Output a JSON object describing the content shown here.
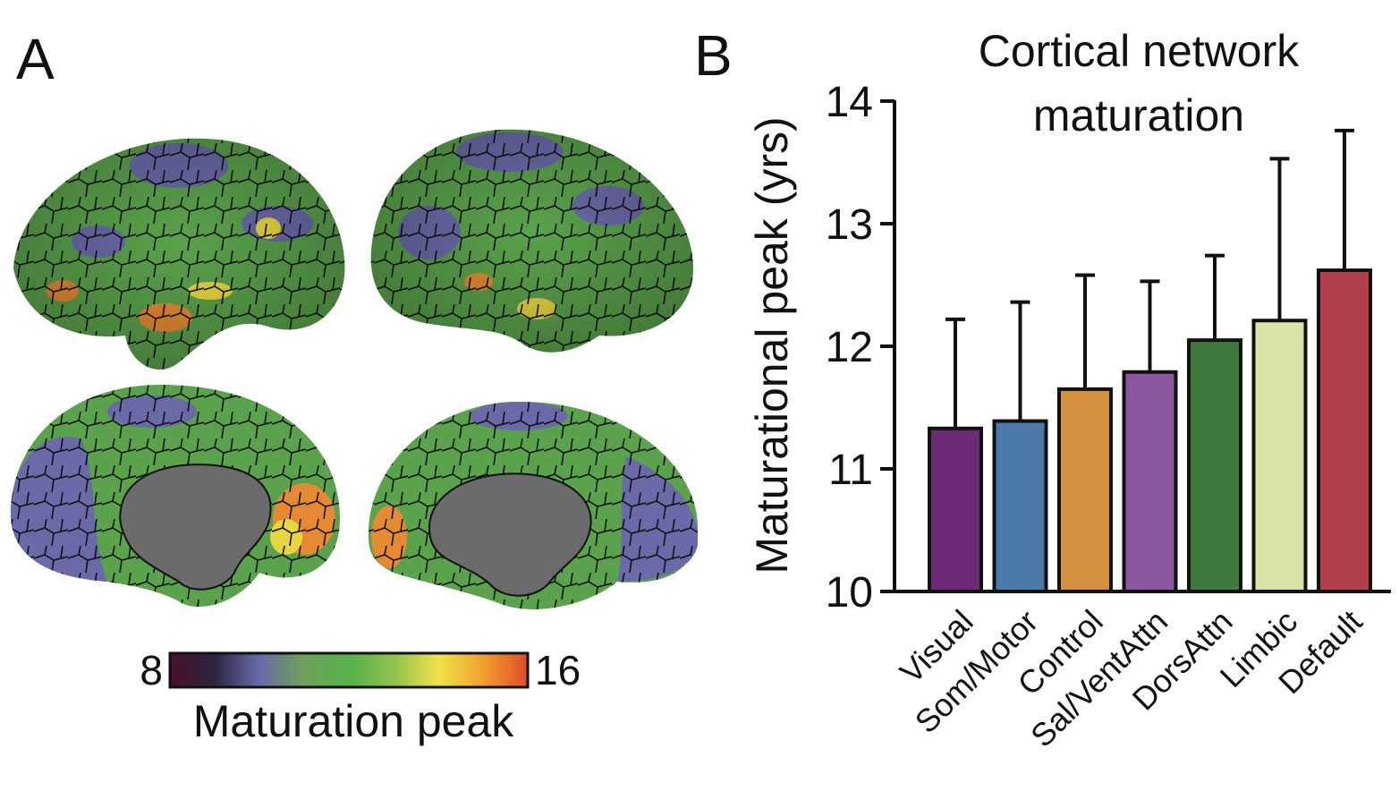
{
  "panels": {
    "a": "A",
    "b": "B"
  },
  "colorbar": {
    "min_label": "8",
    "max_label": "16",
    "title": "Maturation peak",
    "stops": [
      "#4a0f2a",
      "#2b2440",
      "#6a6aa8",
      "#6fa05a",
      "#56b04a",
      "#8fc24e",
      "#f1e34a",
      "#f0a030",
      "#e04a2a"
    ]
  },
  "brain_colors": {
    "base_green": "#5aa24b",
    "blue_patch": "#6a6aa8",
    "yellow_patch": "#e8d640",
    "orange_patch": "#e58a32",
    "medial_wall": "#6b6b6b"
  },
  "chart_data": {
    "type": "bar",
    "title": [
      "Cortical network",
      "maturation"
    ],
    "xlabel": "",
    "ylabel": "Maturational peak (yrs)",
    "ylim": [
      10,
      14
    ],
    "yticks": [
      "10",
      "11",
      "12",
      "13",
      "14"
    ],
    "categories": [
      "Visual",
      "Som/Motor",
      "Control",
      "Sal/VentAttn",
      "DorsAttn",
      "Limbic",
      "Default"
    ],
    "values": [
      11.33,
      11.39,
      11.65,
      11.79,
      12.05,
      12.21,
      12.62
    ],
    "errors": [
      0.89,
      0.97,
      0.93,
      0.74,
      0.69,
      1.32,
      1.14
    ],
    "colors": [
      "#6b2a74",
      "#4e7aab",
      "#d48f3f",
      "#8a56a0",
      "#3e7a3c",
      "#dce3a8",
      "#b1404c"
    ],
    "grid": false,
    "legend": "none"
  }
}
